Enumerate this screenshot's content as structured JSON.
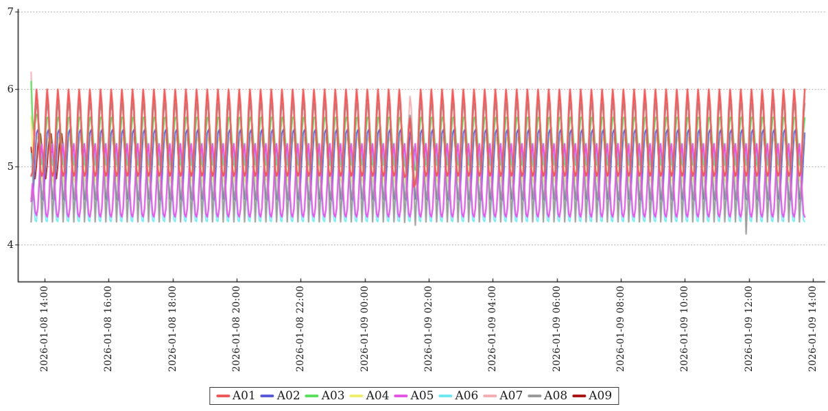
{
  "accent_colors": {
    "axis": "#1a1a1a",
    "gridline": "#8a8a8a",
    "background": "#ffffff",
    "tick_text": "#1c1c1c"
  },
  "chart_data": {
    "type": "line",
    "title": "",
    "x_axis": {
      "label": "",
      "start": "2026-01-08 14:00",
      "end": "2026-01-09 14:00",
      "tick_interval_hours": 2,
      "tick_labels": [
        "2026-01-08 14:00",
        "2026-01-08 16:00",
        "2026-01-08 18:00",
        "2026-01-08 20:00",
        "2026-01-08 22:00",
        "2026-01-09 00:00",
        "2026-01-09 02:00",
        "2026-01-09 04:00",
        "2026-01-09 06:00",
        "2026-01-09 08:00",
        "2026-01-09 10:00",
        "2026-01-09 12:00",
        "2026-01-09 14:00"
      ]
    },
    "y_axis": {
      "label": "",
      "tick_labels": [
        "7",
        "6",
        "5",
        "4"
      ],
      "tick_values": [
        7,
        6,
        5,
        4
      ],
      "visible_min": 3.5,
      "visible_top": 7.05,
      "grid": "dotted"
    },
    "signal": {
      "period_minutes": 20,
      "sample_minutes": 2.5,
      "time_start_offset_hours": -0.42,
      "time_end_offset_hours": 23.78
    },
    "series": [
      {
        "name": "A01",
        "color": "#ee5a5a",
        "min": 4.88,
        "max": 6.0,
        "phase": 0.0,
        "sharpness": 1.5
      },
      {
        "name": "A02",
        "color": "#5a5ad8",
        "min": 4.55,
        "max": 5.5,
        "phase": 0.07,
        "sharpness": 1.1
      },
      {
        "name": "A03",
        "color": "#5cdf5c",
        "min": 4.98,
        "max": 5.66,
        "phase": 0.06,
        "sharpness": 0.9
      },
      {
        "name": "A04",
        "color": "#f0ee6e",
        "min": 4.78,
        "max": 5.38,
        "phase": 0.1,
        "sharpness": 1.0
      },
      {
        "name": "A05",
        "color": "#e356e3",
        "min": 4.35,
        "max": 5.3,
        "phase": 0.47,
        "sharpness": 1.35
      },
      {
        "name": "A06",
        "color": "#6ee9f2",
        "min": 4.28,
        "max": 5.2,
        "phase": 0.44,
        "sharpness": 1.2
      },
      {
        "name": "A07",
        "color": "#f2b0b4",
        "min": 4.62,
        "max": 5.92,
        "phase": 0.015,
        "sharpness": 1.3
      },
      {
        "name": "A08",
        "color": "#9a9a9a",
        "min": 4.23,
        "max": 5.82,
        "phase": 0.01,
        "sharpness": 0.6
      },
      {
        "name": "A09",
        "color": "#aa1515",
        "min": 4.82,
        "max": 5.45,
        "phase": 0.3,
        "sharpness": 1.0,
        "end_offset_hours": 0.6
      }
    ],
    "startup_values": {
      "A07": 6.22,
      "A03": 6.1,
      "A04": 5.65,
      "A05": 4.55
    },
    "startup_decay_hours": 0.07,
    "events": [
      {
        "name": "dip",
        "center_offset_hours": 11.45,
        "width_hours": 0.11,
        "delta": {
          "A01": -0.42,
          "A03": -0.28,
          "A08": -0.17,
          "A04": -0.18
        }
      },
      {
        "name": "gray-drop",
        "center_offset_hours": 21.92,
        "width_hours": 0.05,
        "delta": {
          "A08": -0.16
        }
      }
    ],
    "legend": {
      "position": "bottom-center",
      "entries": [
        "A01",
        "A02",
        "A03",
        "A04",
        "A05",
        "A06",
        "A07",
        "A08",
        "A09"
      ]
    }
  }
}
